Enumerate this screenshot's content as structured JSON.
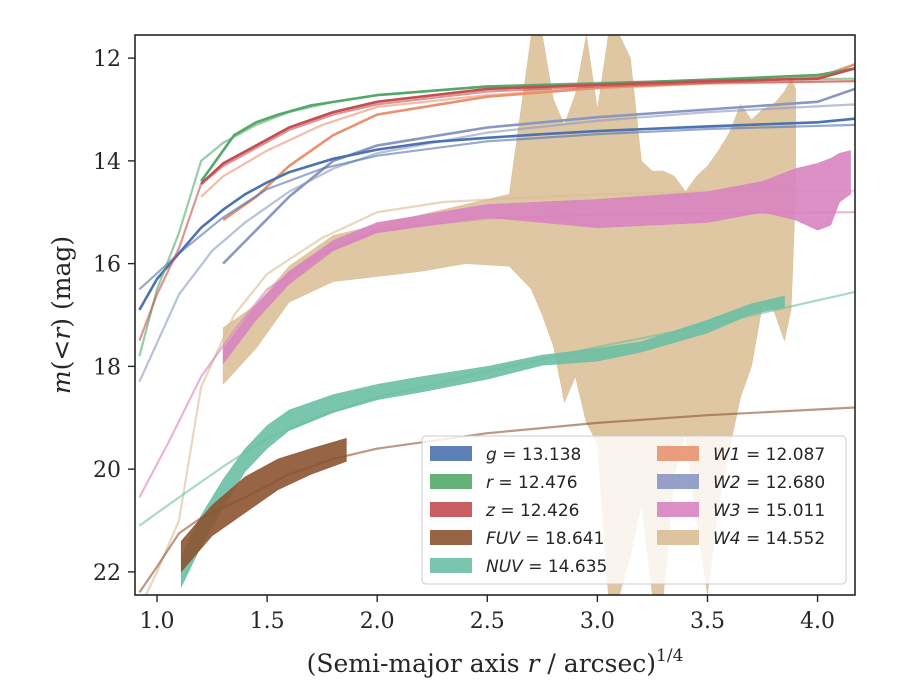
{
  "chart_data": {
    "type": "line",
    "xlabel": "(Semi-major axis r / arcsec)",
    "xlabel_parts": {
      "pre": "(Semi-major axis ",
      "var": "r",
      "post": " / arcsec)",
      "sup": "1/4"
    },
    "ylabel_parts": {
      "m": "m",
      "open": "(",
      "lt": "<",
      "r": "r",
      "close": ")",
      "unit": " (mag)"
    },
    "xlim": [
      0.9,
      4.17
    ],
    "ylim": [
      22.45,
      11.55
    ],
    "y_inverted": true,
    "grid": false,
    "xticks": [
      "1.0",
      "1.5",
      "2.0",
      "2.5",
      "3.0",
      "3.5",
      "4.0"
    ],
    "yticks": [
      "12",
      "14",
      "16",
      "18",
      "20",
      "22"
    ],
    "legend_position": "lower-right",
    "legend": [
      {
        "band": "g",
        "text": " = 13.138",
        "color": "#4c72b0"
      },
      {
        "band": "r",
        "text": " = 12.476",
        "color": "#55a868"
      },
      {
        "band": "z",
        "text": " = 12.426",
        "color": "#c44e52"
      },
      {
        "band": "FUV",
        "text": " = 18.641",
        "color": "#8c5332"
      },
      {
        "band": "NUV",
        "text": " = 14.635",
        "color": "#6cbfa4"
      },
      {
        "band": "W1",
        "text": " = 12.087",
        "color": "#e8936f"
      },
      {
        "band": "W2",
        "text": " = 12.680",
        "color": "#8b97c2"
      },
      {
        "band": "W3",
        "text": " = 15.011",
        "color": "#d884c0"
      },
      {
        "band": "W4",
        "text": " = 14.552",
        "color": "#d9bd93"
      }
    ],
    "series": [
      {
        "name": "g",
        "color": "#4c72b0",
        "data": [
          [
            0.92,
            16.9
          ],
          [
            1.0,
            16.3
          ],
          [
            1.1,
            15.8
          ],
          [
            1.2,
            15.3
          ],
          [
            1.3,
            14.95
          ],
          [
            1.4,
            14.65
          ],
          [
            1.5,
            14.42
          ],
          [
            1.6,
            14.22
          ],
          [
            1.8,
            13.96
          ],
          [
            2.0,
            13.78
          ],
          [
            2.25,
            13.63
          ],
          [
            2.5,
            13.55
          ],
          [
            2.75,
            13.48
          ],
          [
            3.0,
            13.42
          ],
          [
            3.5,
            13.33
          ],
          [
            4.0,
            13.25
          ],
          [
            4.17,
            13.18
          ]
        ],
        "fit": [
          [
            0.92,
            16.5
          ],
          [
            1.1,
            15.8
          ],
          [
            1.3,
            15.1
          ],
          [
            1.5,
            14.55
          ],
          [
            1.75,
            14.15
          ],
          [
            2.0,
            13.9
          ],
          [
            2.5,
            13.62
          ],
          [
            3.0,
            13.48
          ],
          [
            3.5,
            13.38
          ],
          [
            4.17,
            13.3
          ]
        ]
      },
      {
        "name": "r",
        "color": "#55a868",
        "data": [
          [
            1.2,
            14.4
          ],
          [
            1.35,
            13.5
          ],
          [
            1.45,
            13.25
          ],
          [
            1.55,
            13.1
          ],
          [
            1.7,
            12.92
          ],
          [
            2.0,
            12.72
          ],
          [
            2.5,
            12.55
          ],
          [
            3.0,
            12.5
          ],
          [
            3.5,
            12.42
          ],
          [
            4.0,
            12.33
          ],
          [
            4.17,
            12.2
          ]
        ],
        "fit": [
          [
            0.92,
            17.8
          ],
          [
            1.0,
            16.5
          ],
          [
            1.1,
            15.4
          ],
          [
            1.2,
            14.0
          ],
          [
            1.3,
            13.65
          ],
          [
            1.45,
            13.3
          ],
          [
            1.6,
            13.05
          ],
          [
            1.8,
            12.85
          ],
          [
            2.0,
            12.72
          ],
          [
            2.5,
            12.55
          ],
          [
            3.0,
            12.48
          ],
          [
            3.5,
            12.43
          ],
          [
            4.17,
            12.4
          ]
        ]
      },
      {
        "name": "z",
        "color": "#c44e52",
        "data": [
          [
            1.2,
            14.45
          ],
          [
            1.3,
            14.05
          ],
          [
            1.45,
            13.7
          ],
          [
            1.6,
            13.35
          ],
          [
            1.8,
            13.05
          ],
          [
            2.0,
            12.85
          ],
          [
            2.5,
            12.6
          ],
          [
            3.0,
            12.52
          ],
          [
            3.5,
            12.45
          ],
          [
            4.0,
            12.4
          ],
          [
            4.17,
            12.2
          ]
        ],
        "fit": [
          [
            0.92,
            17.5
          ],
          [
            1.0,
            16.6
          ],
          [
            1.1,
            15.7
          ],
          [
            1.2,
            14.45
          ],
          [
            1.3,
            14.1
          ],
          [
            1.45,
            13.75
          ],
          [
            1.6,
            13.4
          ],
          [
            1.8,
            13.1
          ],
          [
            2.0,
            12.9
          ],
          [
            2.5,
            12.65
          ],
          [
            3.0,
            12.55
          ],
          [
            3.5,
            12.48
          ],
          [
            4.17,
            12.45
          ]
        ]
      },
      {
        "name": "FUV",
        "color": "#8c5332",
        "band": [
          [
            1.11,
            21.4,
            22.0
          ],
          [
            1.25,
            20.7,
            21.3
          ],
          [
            1.4,
            20.15,
            20.85
          ],
          [
            1.55,
            19.8,
            20.4
          ],
          [
            1.7,
            19.6,
            20.1
          ],
          [
            1.86,
            19.4,
            19.85
          ]
        ],
        "fit": [
          [
            0.92,
            22.4
          ],
          [
            1.0,
            21.9
          ],
          [
            1.1,
            21.25
          ],
          [
            1.2,
            20.95
          ],
          [
            1.4,
            20.55
          ],
          [
            1.6,
            20.1
          ],
          [
            1.8,
            19.8
          ],
          [
            2.0,
            19.6
          ],
          [
            2.5,
            19.3
          ],
          [
            3.0,
            19.1
          ],
          [
            3.5,
            18.95
          ],
          [
            4.17,
            18.8
          ]
        ]
      },
      {
        "name": "NUV",
        "color": "#6cbfa4",
        "band": [
          [
            1.11,
            21.7,
            22.3
          ],
          [
            1.2,
            20.9,
            21.5
          ],
          [
            1.3,
            20.2,
            20.75
          ],
          [
            1.4,
            19.6,
            20.05
          ],
          [
            1.5,
            19.15,
            19.6
          ],
          [
            1.6,
            18.85,
            19.25
          ],
          [
            1.8,
            18.55,
            18.9
          ],
          [
            2.0,
            18.35,
            18.65
          ],
          [
            2.2,
            18.2,
            18.5
          ],
          [
            2.5,
            18.0,
            18.25
          ],
          [
            2.75,
            17.78,
            17.98
          ],
          [
            3.0,
            17.65,
            17.9
          ],
          [
            3.2,
            17.52,
            17.72
          ],
          [
            3.5,
            17.1,
            17.35
          ],
          [
            3.7,
            16.78,
            16.98
          ],
          [
            3.85,
            16.63,
            16.85
          ]
        ],
        "fit": [
          [
            0.92,
            21.1
          ],
          [
            1.1,
            20.55
          ],
          [
            1.3,
            19.95
          ],
          [
            1.5,
            19.4
          ],
          [
            1.75,
            18.95
          ],
          [
            2.0,
            18.6
          ],
          [
            2.5,
            18.1
          ],
          [
            3.0,
            17.62
          ],
          [
            3.5,
            17.2
          ],
          [
            4.17,
            16.55
          ]
        ]
      },
      {
        "name": "W1",
        "color": "#e8936f",
        "data": [
          [
            1.3,
            15.15
          ],
          [
            1.45,
            14.7
          ],
          [
            1.6,
            14.1
          ],
          [
            1.8,
            13.5
          ],
          [
            2.0,
            13.1
          ],
          [
            2.5,
            12.75
          ],
          [
            3.0,
            12.58
          ],
          [
            3.5,
            12.48
          ],
          [
            4.0,
            12.38
          ],
          [
            4.17,
            12.12
          ]
        ],
        "fit": [
          [
            1.2,
            14.7
          ],
          [
            1.3,
            14.3
          ],
          [
            1.5,
            13.8
          ],
          [
            1.75,
            13.3
          ],
          [
            2.0,
            12.95
          ],
          [
            2.5,
            12.72
          ],
          [
            3.0,
            12.58
          ],
          [
            3.5,
            12.5
          ],
          [
            4.17,
            12.45
          ]
        ]
      },
      {
        "name": "W2",
        "color": "#8b97c2",
        "data": [
          [
            1.3,
            16.0
          ],
          [
            1.45,
            15.35
          ],
          [
            1.6,
            14.7
          ],
          [
            1.8,
            14.0
          ],
          [
            2.0,
            13.7
          ],
          [
            2.5,
            13.35
          ],
          [
            3.0,
            13.15
          ],
          [
            3.5,
            13.0
          ],
          [
            4.0,
            12.85
          ],
          [
            4.17,
            12.6
          ]
        ],
        "fit": [
          [
            0.92,
            18.3
          ],
          [
            1.1,
            16.6
          ],
          [
            1.25,
            15.75
          ],
          [
            1.4,
            15.2
          ],
          [
            1.6,
            14.6
          ],
          [
            1.8,
            14.15
          ],
          [
            2.0,
            13.85
          ],
          [
            2.5,
            13.45
          ],
          [
            3.0,
            13.22
          ],
          [
            3.5,
            13.05
          ],
          [
            4.17,
            12.9
          ]
        ]
      },
      {
        "name": "W3",
        "color": "#d884c0",
        "band": [
          [
            1.3,
            17.65,
            17.95
          ],
          [
            1.45,
            16.8,
            17.1
          ],
          [
            1.6,
            16.15,
            16.4
          ],
          [
            1.8,
            15.55,
            15.75
          ],
          [
            2.0,
            15.2,
            15.4
          ],
          [
            2.5,
            14.85,
            15.1
          ],
          [
            3.0,
            14.75,
            15.3
          ],
          [
            3.5,
            14.6,
            15.2
          ],
          [
            3.75,
            14.4,
            15.0
          ],
          [
            3.9,
            14.15,
            15.15
          ],
          [
            4.0,
            14.05,
            15.35
          ],
          [
            4.06,
            13.95,
            15.25
          ],
          [
            4.1,
            13.85,
            14.8
          ],
          [
            4.15,
            13.8,
            14.65
          ]
        ],
        "fit": [
          [
            0.92,
            20.55
          ],
          [
            1.05,
            19.5
          ],
          [
            1.2,
            18.2
          ],
          [
            1.35,
            17.3
          ],
          [
            1.5,
            16.5
          ],
          [
            1.75,
            15.8
          ],
          [
            2.0,
            15.35
          ],
          [
            2.5,
            15.12
          ],
          [
            3.0,
            15.05
          ],
          [
            3.5,
            15.02
          ],
          [
            4.17,
            15.0
          ]
        ]
      },
      {
        "name": "W4",
        "color": "#d9bd93",
        "band": [
          [
            1.3,
            17.25,
            18.35
          ],
          [
            1.45,
            16.8,
            17.65
          ],
          [
            1.6,
            16.05,
            16.75
          ],
          [
            1.8,
            15.45,
            16.35
          ],
          [
            2.0,
            15.25,
            16.25
          ],
          [
            2.2,
            15.05,
            16.15
          ],
          [
            2.4,
            14.85,
            16.0
          ],
          [
            2.6,
            14.65,
            16.05
          ],
          [
            2.7,
            11.55,
            16.5
          ],
          [
            2.75,
            11.55,
            17.0
          ],
          [
            2.8,
            12.8,
            17.6
          ],
          [
            2.85,
            13.3,
            18.7
          ],
          [
            2.9,
            12.7,
            18.2
          ],
          [
            2.95,
            11.55,
            19.1
          ],
          [
            3.0,
            13.0,
            19.5
          ],
          [
            3.05,
            11.55,
            22.45
          ],
          [
            3.1,
            11.55,
            22.45
          ],
          [
            3.15,
            12.0,
            21.7
          ],
          [
            3.2,
            14.0,
            20.7
          ],
          [
            3.25,
            14.2,
            22.45
          ],
          [
            3.3,
            14.2,
            22.45
          ],
          [
            3.35,
            14.3,
            20.1
          ],
          [
            3.4,
            14.6,
            19.3
          ],
          [
            3.45,
            14.3,
            21.0
          ],
          [
            3.5,
            14.1,
            22.45
          ],
          [
            3.55,
            13.8,
            20.7
          ],
          [
            3.6,
            13.45,
            19.6
          ],
          [
            3.65,
            12.9,
            18.6
          ],
          [
            3.7,
            13.2,
            18.0
          ],
          [
            3.75,
            13.0,
            16.8
          ],
          [
            3.8,
            12.9,
            16.9
          ],
          [
            3.85,
            12.65,
            17.5
          ],
          [
            3.88,
            12.4,
            16.9
          ],
          [
            3.9,
            12.6,
            14.6
          ]
        ],
        "fit": [
          [
            0.95,
            22.45
          ],
          [
            1.0,
            22.0
          ],
          [
            1.1,
            21.0
          ],
          [
            1.2,
            18.4
          ],
          [
            1.35,
            17.0
          ],
          [
            1.5,
            16.2
          ],
          [
            1.75,
            15.5
          ],
          [
            2.0,
            15.0
          ],
          [
            2.3,
            14.8
          ],
          [
            2.75,
            14.7
          ],
          [
            3.0,
            14.65
          ],
          [
            3.5,
            14.6
          ],
          [
            4.17,
            14.58
          ]
        ]
      }
    ]
  }
}
